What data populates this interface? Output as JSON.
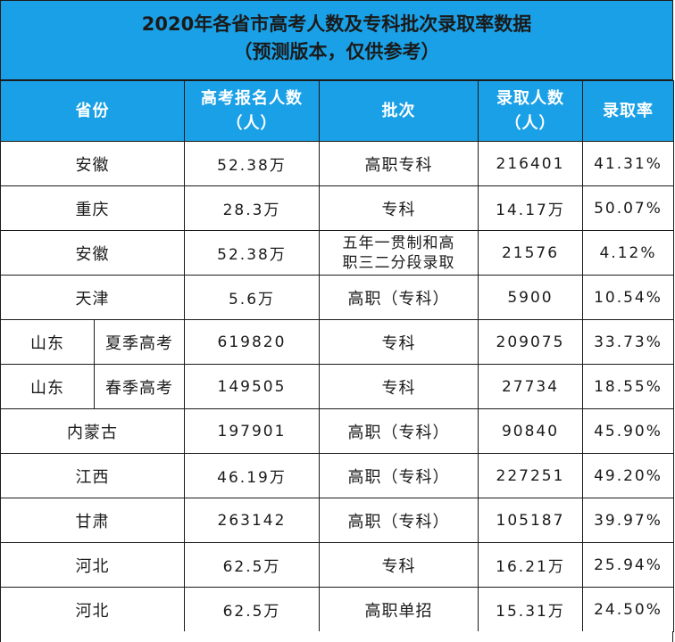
{
  "title": {
    "line1": "2020年各省市高考人数及专科批次录取率数据",
    "line2": "（预测版本，仅供参考）"
  },
  "headers": {
    "province": "省份",
    "applicants": "高考报名人数（人）",
    "batch": "批次",
    "admitted": "录取人数（人）",
    "rate": "录取率"
  },
  "rows": [
    {
      "province": "安徽",
      "applicants": "52.38万",
      "batch": "高职专科",
      "admitted": "216401",
      "rate": "41.31%"
    },
    {
      "province": "重庆",
      "applicants": "28.3万",
      "batch": "专科",
      "admitted": "14.17万",
      "rate": "50.07%"
    },
    {
      "province": "安徽",
      "applicants": "52.38万",
      "batch": "五年一贯制和高职三二分段录取",
      "admitted": "21576",
      "rate": "4.12%"
    },
    {
      "province": "天津",
      "applicants": "5.6万",
      "batch": "高职（专科）",
      "admitted": "5900",
      "rate": "10.54%"
    },
    {
      "province": "山东",
      "sub": "夏季高考",
      "applicants": "619820",
      "batch": "专科",
      "admitted": "209075",
      "rate": "33.73%"
    },
    {
      "province": "山东",
      "sub": "春季高考",
      "applicants": "149505",
      "batch": "专科",
      "admitted": "27734",
      "rate": "18.55%"
    },
    {
      "province": "内蒙古",
      "applicants": "197901",
      "batch": "高职（专科）",
      "admitted": "90840",
      "rate": "45.90%"
    },
    {
      "province": "江西",
      "applicants": "46.19万",
      "batch": "高职（专科）",
      "admitted": "227251",
      "rate": "49.20%"
    },
    {
      "province": "甘肃",
      "applicants": "263142",
      "batch": "高职（专科）",
      "admitted": "105187",
      "rate": "39.97%"
    },
    {
      "province": "河北",
      "applicants": "62.5万",
      "batch": "专科",
      "admitted": "16.21万",
      "rate": "25.94%"
    },
    {
      "province": "河北",
      "applicants": "62.5万",
      "batch": "高职单招",
      "admitted": "15.31万",
      "rate": "24.50%"
    }
  ],
  "colors": {
    "header_bg": "#1aa0e6",
    "header_text": "#ffffff",
    "border": "#1b1b1b"
  }
}
